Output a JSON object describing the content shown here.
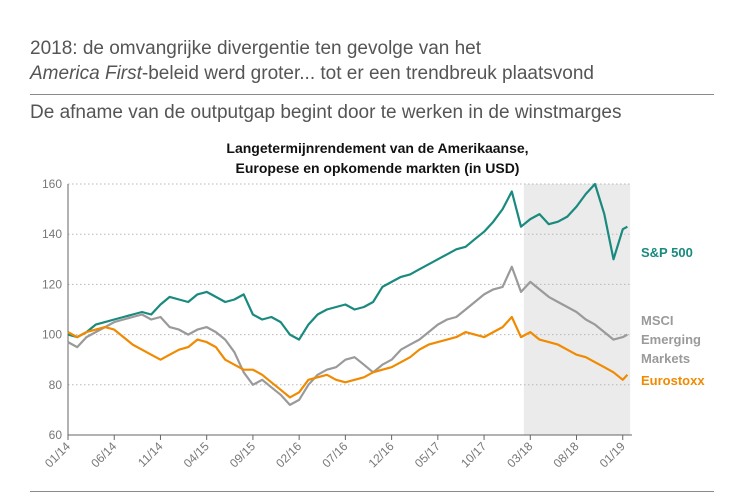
{
  "header": {
    "line1": "2018: de omvangrijke divergentie ten gevolge van het",
    "line2_italic": "America First",
    "line2_rest": "-beleid werd groter... tot er een trendbreuk plaatsvond",
    "subheadline": "De afname van de outputgap begint door te werken in de winstmarges"
  },
  "chart_data": {
    "type": "line",
    "title_line1": "Langetermijnrendement van de Amerikaanse,",
    "title_line2": "Europese en opkomende markten (in USD)",
    "xlabel": "",
    "ylabel": "",
    "ylim": [
      60,
      160
    ],
    "yticks": [
      60,
      80,
      100,
      120,
      140,
      160
    ],
    "xlim": [
      0,
      61
    ],
    "x_tick_labels": [
      "01/14",
      "06/14",
      "11/14",
      "04/15",
      "09/15",
      "02/16",
      "07/16",
      "12/16",
      "05/17",
      "10/17",
      "03/18",
      "08/18",
      "01/19"
    ],
    "x_tick_positions": [
      0,
      5,
      10,
      15,
      20,
      25,
      30,
      35,
      40,
      45,
      50,
      55,
      60
    ],
    "grid": true,
    "shaded_region": {
      "from": 49.3,
      "to": 60.8,
      "color": "#ebebeb"
    },
    "series": [
      {
        "name": "S&P 500",
        "label_lines": [
          "S&P 500"
        ],
        "color": "#1a8a7f",
        "x": [
          0,
          1,
          2,
          3,
          4,
          5,
          6,
          7,
          8,
          9,
          10,
          11,
          12,
          13,
          14,
          15,
          16,
          17,
          18,
          19,
          20,
          21,
          22,
          23,
          24,
          25,
          26,
          27,
          28,
          29,
          30,
          31,
          32,
          33,
          34,
          35,
          36,
          37,
          38,
          39,
          40,
          41,
          42,
          43,
          44,
          45,
          46,
          47,
          48,
          49,
          50,
          51,
          52,
          53,
          54,
          55,
          56,
          57,
          58,
          59,
          60,
          60.5
        ],
        "values": [
          100,
          99,
          101,
          104,
          105,
          106,
          107,
          108,
          109,
          108,
          112,
          115,
          114,
          113,
          116,
          117,
          115,
          113,
          114,
          116,
          108,
          106,
          107,
          105,
          100,
          98,
          104,
          108,
          110,
          111,
          112,
          110,
          111,
          113,
          119,
          121,
          123,
          124,
          126,
          128,
          130,
          132,
          134,
          135,
          138,
          141,
          145,
          150,
          157,
          143,
          146,
          148,
          144,
          145,
          147,
          151,
          156,
          160,
          148,
          130,
          142,
          143
        ]
      },
      {
        "name": "MSCI Emerging Markets",
        "label_lines": [
          "MSCI",
          "Emerging",
          "Markets"
        ],
        "color": "#9a9a9a",
        "x": [
          0,
          1,
          2,
          3,
          4,
          5,
          6,
          7,
          8,
          9,
          10,
          11,
          12,
          13,
          14,
          15,
          16,
          17,
          18,
          19,
          20,
          21,
          22,
          23,
          24,
          25,
          26,
          27,
          28,
          29,
          30,
          31,
          32,
          33,
          34,
          35,
          36,
          37,
          38,
          39,
          40,
          41,
          42,
          43,
          44,
          45,
          46,
          47,
          48,
          49,
          50,
          51,
          52,
          53,
          54,
          55,
          56,
          57,
          58,
          59,
          60,
          60.5
        ],
        "values": [
          97,
          95,
          99,
          101,
          103,
          105,
          106,
          107,
          108,
          106,
          107,
          103,
          102,
          100,
          102,
          103,
          101,
          98,
          93,
          85,
          80,
          82,
          79,
          76,
          72,
          74,
          80,
          84,
          86,
          87,
          90,
          91,
          88,
          85,
          88,
          90,
          94,
          96,
          98,
          101,
          104,
          106,
          107,
          110,
          113,
          116,
          118,
          119,
          127,
          117,
          121,
          118,
          115,
          113,
          111,
          109,
          106,
          104,
          101,
          98,
          99,
          100
        ]
      },
      {
        "name": "Eurostoxx",
        "label_lines": [
          "Eurostoxx"
        ],
        "color": "#f08a00",
        "x": [
          0,
          1,
          2,
          3,
          4,
          5,
          6,
          7,
          8,
          9,
          10,
          11,
          12,
          13,
          14,
          15,
          16,
          17,
          18,
          19,
          20,
          21,
          22,
          23,
          24,
          25,
          26,
          27,
          28,
          29,
          30,
          31,
          32,
          33,
          34,
          35,
          36,
          37,
          38,
          39,
          40,
          41,
          42,
          43,
          44,
          45,
          46,
          47,
          48,
          49,
          50,
          51,
          52,
          53,
          54,
          55,
          56,
          57,
          58,
          59,
          60,
          60.5
        ],
        "values": [
          101,
          99,
          101,
          102,
          103,
          102,
          99,
          96,
          94,
          92,
          90,
          92,
          94,
          95,
          98,
          97,
          95,
          90,
          88,
          86,
          86,
          84,
          81,
          78,
          75,
          77,
          82,
          83,
          84,
          82,
          81,
          82,
          83,
          85,
          86,
          87,
          89,
          91,
          94,
          96,
          97,
          98,
          99,
          101,
          100,
          99,
          101,
          103,
          107,
          99,
          101,
          98,
          97,
          96,
          94,
          92,
          91,
          89,
          87,
          85,
          82,
          84
        ]
      }
    ]
  }
}
